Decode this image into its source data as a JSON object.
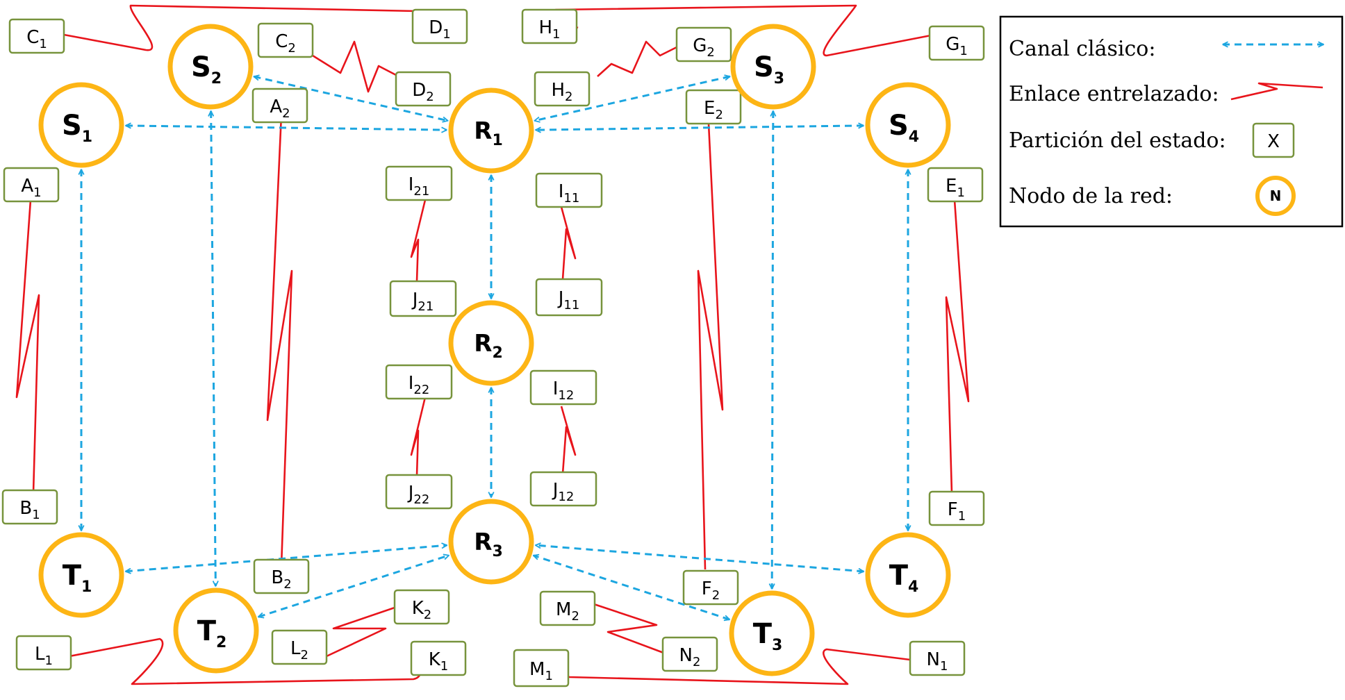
{
  "legend": {
    "classical_channel": "Canal clásico:",
    "entangled_link": "Enlace entrelazado:",
    "state_partition": "Partición del estado:",
    "network_node": "Nodo de la red:",
    "partition_symbol": "X",
    "node_symbol": "N"
  },
  "colors": {
    "node_ring": "#FDB515",
    "partition_border": "#77933C",
    "entangled_link": "#E8141B",
    "classical_channel": "#1CA6E0"
  },
  "nodes": [
    {
      "id": "S1",
      "letter": "S",
      "sub": "1"
    },
    {
      "id": "S2",
      "letter": "S",
      "sub": "2"
    },
    {
      "id": "S3",
      "letter": "S",
      "sub": "3"
    },
    {
      "id": "S4",
      "letter": "S",
      "sub": "4"
    },
    {
      "id": "R1",
      "letter": "R",
      "sub": "1"
    },
    {
      "id": "R2",
      "letter": "R",
      "sub": "2"
    },
    {
      "id": "R3",
      "letter": "R",
      "sub": "3"
    },
    {
      "id": "T1",
      "letter": "T",
      "sub": "1"
    },
    {
      "id": "T2",
      "letter": "T",
      "sub": "2"
    },
    {
      "id": "T3",
      "letter": "T",
      "sub": "3"
    },
    {
      "id": "T4",
      "letter": "T",
      "sub": "4"
    }
  ],
  "partitions": [
    {
      "id": "C1",
      "letter": "C",
      "sub": "1"
    },
    {
      "id": "D1",
      "letter": "D",
      "sub": "1"
    },
    {
      "id": "C2",
      "letter": "C",
      "sub": "2"
    },
    {
      "id": "D2",
      "letter": "D",
      "sub": "2"
    },
    {
      "id": "H1",
      "letter": "H",
      "sub": "1"
    },
    {
      "id": "G1",
      "letter": "G",
      "sub": "1"
    },
    {
      "id": "G2",
      "letter": "G",
      "sub": "2"
    },
    {
      "id": "H2",
      "letter": "H",
      "sub": "2"
    },
    {
      "id": "A1",
      "letter": "A",
      "sub": "1"
    },
    {
      "id": "B1",
      "letter": "B",
      "sub": "1"
    },
    {
      "id": "A2",
      "letter": "A",
      "sub": "2"
    },
    {
      "id": "B2",
      "letter": "B",
      "sub": "2"
    },
    {
      "id": "E1",
      "letter": "E",
      "sub": "1"
    },
    {
      "id": "F1",
      "letter": "F",
      "sub": "1"
    },
    {
      "id": "E2",
      "letter": "E",
      "sub": "2"
    },
    {
      "id": "F2",
      "letter": "F",
      "sub": "2"
    },
    {
      "id": "I21",
      "letter": "I",
      "sub": "21"
    },
    {
      "id": "J21",
      "letter": "J",
      "sub": "21"
    },
    {
      "id": "I11",
      "letter": "I",
      "sub": "11"
    },
    {
      "id": "J11",
      "letter": "J",
      "sub": "11"
    },
    {
      "id": "I22",
      "letter": "I",
      "sub": "22"
    },
    {
      "id": "J22",
      "letter": "J",
      "sub": "22"
    },
    {
      "id": "I12",
      "letter": "I",
      "sub": "12"
    },
    {
      "id": "J12",
      "letter": "J",
      "sub": "12"
    },
    {
      "id": "K2",
      "letter": "K",
      "sub": "2"
    },
    {
      "id": "L2",
      "letter": "L",
      "sub": "2"
    },
    {
      "id": "K1",
      "letter": "K",
      "sub": "1"
    },
    {
      "id": "L1",
      "letter": "L",
      "sub": "1"
    },
    {
      "id": "M2",
      "letter": "M",
      "sub": "2"
    },
    {
      "id": "N2",
      "letter": "N",
      "sub": "2"
    },
    {
      "id": "M1",
      "letter": "M",
      "sub": "1"
    },
    {
      "id": "N1",
      "letter": "N",
      "sub": "1"
    }
  ],
  "classical_channels": [
    [
      "S1",
      "R1"
    ],
    [
      "S2",
      "R1"
    ],
    [
      "S3",
      "R1"
    ],
    [
      "S4",
      "R1"
    ],
    [
      "R1",
      "R2"
    ],
    [
      "R2",
      "R3"
    ],
    [
      "T1",
      "R3"
    ],
    [
      "T2",
      "R3"
    ],
    [
      "T3",
      "R3"
    ],
    [
      "T4",
      "R3"
    ],
    [
      "S1",
      "T1"
    ],
    [
      "S2",
      "T2"
    ],
    [
      "S3",
      "T3"
    ],
    [
      "S4",
      "T4"
    ]
  ],
  "entangled_links": [
    [
      "A1",
      "B1"
    ],
    [
      "A2",
      "B2"
    ],
    [
      "C1",
      "D1"
    ],
    [
      "C2",
      "D2"
    ],
    [
      "E1",
      "F1"
    ],
    [
      "E2",
      "F2"
    ],
    [
      "G1",
      "H1"
    ],
    [
      "G2",
      "H2"
    ],
    [
      "I11",
      "J11"
    ],
    [
      "I21",
      "J21"
    ],
    [
      "I12",
      "J12"
    ],
    [
      "I22",
      "J22"
    ],
    [
      "K1",
      "L1"
    ],
    [
      "K2",
      "L2"
    ],
    [
      "M1",
      "N1"
    ],
    [
      "M2",
      "N2"
    ]
  ]
}
